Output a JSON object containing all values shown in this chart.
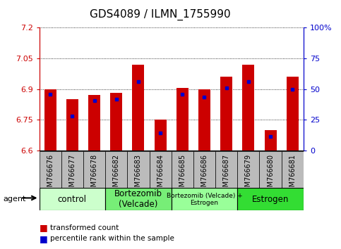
{
  "title": "GDS4089 / ILMN_1755990",
  "samples": [
    "GSM766676",
    "GSM766677",
    "GSM766678",
    "GSM766682",
    "GSM766683",
    "GSM766684",
    "GSM766685",
    "GSM766686",
    "GSM766687",
    "GSM766679",
    "GSM766680",
    "GSM766681"
  ],
  "bar_values": [
    6.9,
    6.85,
    6.87,
    6.88,
    7.02,
    6.75,
    6.905,
    6.9,
    6.96,
    7.02,
    6.7,
    6.96
  ],
  "percentile_values": [
    6.875,
    6.77,
    6.845,
    6.852,
    6.935,
    6.685,
    6.875,
    6.862,
    6.905,
    6.935,
    6.67,
    6.9
  ],
  "ymin": 6.6,
  "ymax": 7.2,
  "yticks": [
    6.6,
    6.75,
    6.9,
    7.05,
    7.2
  ],
  "ytick_labels": [
    "6.6",
    "6.75",
    "6.9",
    "7.05",
    "7.2"
  ],
  "right_yticks": [
    0,
    25,
    50,
    75,
    100
  ],
  "right_ytick_labels": [
    "0",
    "25",
    "50",
    "75",
    "100%"
  ],
  "bar_color": "#cc0000",
  "blue_color": "#0000cc",
  "bar_bottom": 6.6,
  "groups": [
    {
      "label": "control",
      "start": 0,
      "end": 3,
      "color": "#ccffcc"
    },
    {
      "label": "Bortezomib\n(Velcade)",
      "start": 3,
      "end": 6,
      "color": "#77ee77"
    },
    {
      "label": "Bortezomib (Velcade) +\nEstrogen",
      "start": 6,
      "end": 9,
      "color": "#99ff99"
    },
    {
      "label": "Estrogen",
      "start": 9,
      "end": 12,
      "color": "#33dd33"
    }
  ],
  "agent_label": "agent",
  "legend_red": "transformed count",
  "legend_blue": "percentile rank within the sample",
  "axis_color_left": "#cc0000",
  "axis_color_right": "#0000cc",
  "title_fontsize": 11,
  "tick_fontsize": 8,
  "bar_width": 0.55,
  "xticklabel_fontsize": 7,
  "grey_box_color": "#bbbbbb"
}
